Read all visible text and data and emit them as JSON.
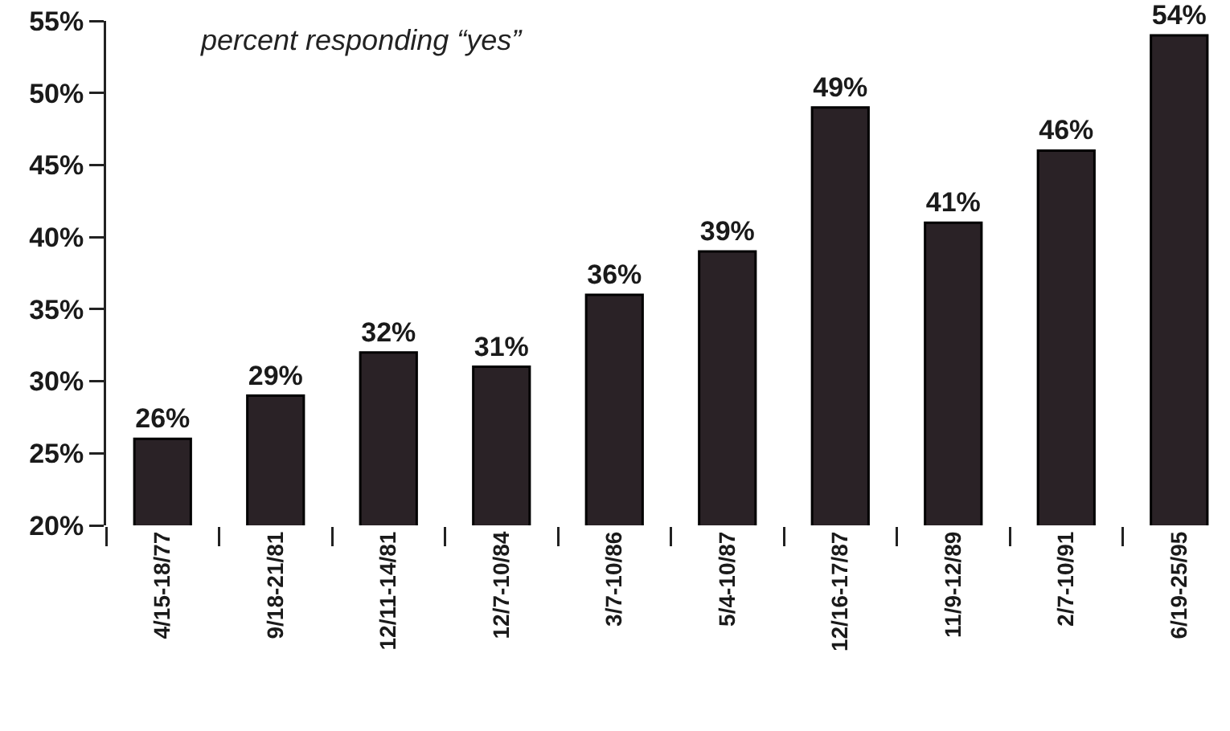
{
  "chart_data": {
    "type": "bar",
    "categories": [
      "4/15-18/77",
      "9/18-21/81",
      "12/11-14/81",
      "12/7-10/84",
      "3/7-10/86",
      "5/4-10/87",
      "12/16-17/87",
      "11/9-12/89",
      "2/7-10/91",
      "6/19-25/95"
    ],
    "values": [
      26,
      29,
      32,
      31,
      36,
      39,
      49,
      41,
      46,
      54
    ],
    "value_labels": [
      "26%",
      "29%",
      "32%",
      "31%",
      "36%",
      "39%",
      "49%",
      "41%",
      "46%",
      "54%"
    ],
    "color": "#2a2226",
    "ylim": [
      20,
      55
    ],
    "yticks": [
      {
        "value": 20,
        "label": "20%"
      },
      {
        "value": 25,
        "label": "25%"
      },
      {
        "value": 30,
        "label": "30%"
      },
      {
        "value": 35,
        "label": "35%"
      },
      {
        "value": 40,
        "label": "40%"
      },
      {
        "value": 45,
        "label": "45%"
      },
      {
        "value": 50,
        "label": "50%"
      },
      {
        "value": 55,
        "label": "55%"
      }
    ],
    "annotations": [
      "percent responding “yes”"
    ]
  }
}
